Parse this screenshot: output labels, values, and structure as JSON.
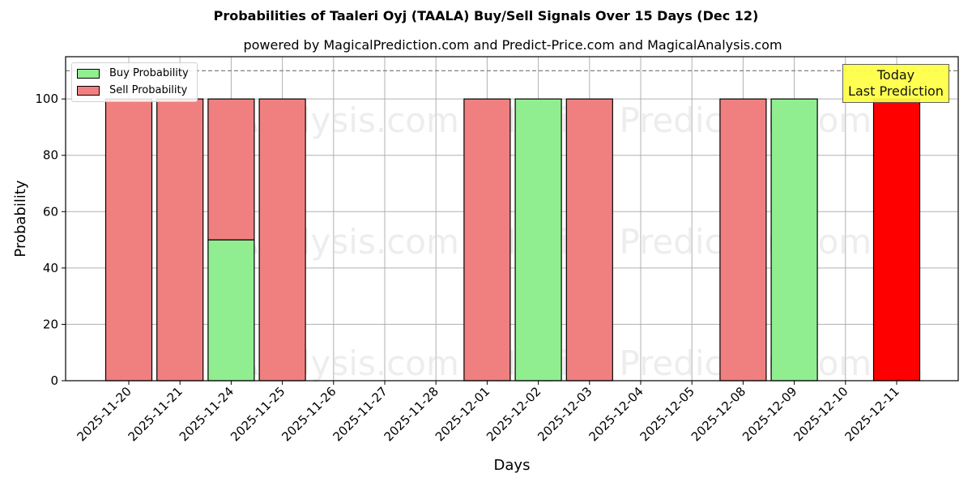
{
  "header": {
    "title": "Probabilities of Taaleri Oyj (TAALA) Buy/Sell Signals Over 15 Days (Dec 12)",
    "subtitle": "powered by MagicalPrediction.com and Predict-Price.com and MagicalAnalysis.com"
  },
  "legend": {
    "buy_label": "Buy Probability",
    "sell_label": "Sell Probability"
  },
  "annotation": {
    "line1": "Today",
    "line2": "Last Prediction"
  },
  "watermarks": [
    "MagicalAnalysis.com",
    "Magica Prediction.com"
  ],
  "colors": {
    "buy": "#90ee90",
    "sell": "#f08080",
    "today_sell": "#ff0000",
    "annotation_bg": "#ffff44",
    "grid": "#b0b0b0",
    "reference_line": "#808080"
  },
  "chart_data": {
    "type": "bar",
    "stacked": true,
    "title": "Probabilities of Taaleri Oyj (TAALA) Buy/Sell Signals Over 15 Days (Dec 12)",
    "subtitle": "powered by MagicalPrediction.com and Predict-Price.com and MagicalAnalysis.com",
    "xlabel": "Days",
    "ylabel": "Probability",
    "ylim": [
      0,
      115
    ],
    "yticks": [
      0,
      20,
      40,
      60,
      80,
      100
    ],
    "grid": true,
    "legend_position": "upper left",
    "reference_line": {
      "y": 110,
      "style": "dashed"
    },
    "categories": [
      "2025-11-20",
      "2025-11-21",
      "2025-11-24",
      "2025-11-25",
      "2025-11-26",
      "2025-11-27",
      "2025-11-28",
      "2025-12-01",
      "2025-12-02",
      "2025-12-03",
      "2025-12-04",
      "2025-12-05",
      "2025-12-08",
      "2025-12-09",
      "2025-12-10",
      "2025-12-11"
    ],
    "series": [
      {
        "name": "Buy Probability",
        "values": [
          0,
          0,
          50,
          0,
          0,
          0,
          0,
          0,
          100,
          0,
          0,
          0,
          0,
          100,
          0,
          0
        ]
      },
      {
        "name": "Sell Probability",
        "values": [
          100,
          100,
          50,
          100,
          0,
          0,
          0,
          100,
          0,
          100,
          0,
          0,
          100,
          0,
          0,
          100
        ]
      }
    ],
    "highlight": {
      "category": "2025-12-11",
      "label": "Today\nLast Prediction"
    }
  }
}
